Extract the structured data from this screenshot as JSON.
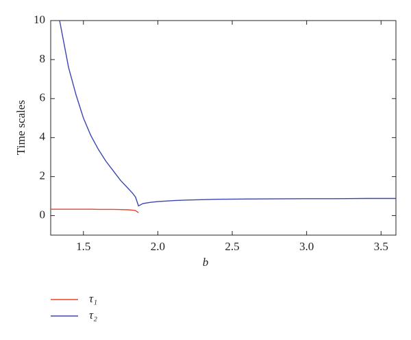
{
  "chart_data": {
    "type": "line",
    "xlabel": "b",
    "ylabel": "Time scales",
    "x": [
      1.28,
      1.3,
      1.34,
      1.35,
      1.4,
      1.45,
      1.5,
      1.55,
      1.6,
      1.65,
      1.7,
      1.75,
      1.8,
      1.83,
      1.85,
      1.87,
      1.9,
      1.95,
      2.0,
      2.1,
      2.2,
      2.4,
      2.6,
      2.8,
      3.0,
      3.2,
      3.4,
      3.6
    ],
    "series": [
      {
        "name": "τ₁",
        "color": "#e8412c",
        "values": [
          0.33,
          0.33,
          0.33,
          0.33,
          0.33,
          0.33,
          0.33,
          0.33,
          0.32,
          0.32,
          0.32,
          0.31,
          0.3,
          0.28,
          0.26,
          0.15,
          null,
          null,
          null,
          null,
          null,
          null,
          null,
          null,
          null,
          null,
          null,
          null
        ]
      },
      {
        "name": "τ₂",
        "color": "#3a45b0",
        "values": [
          null,
          null,
          10,
          9.6,
          7.6,
          6.2,
          5.0,
          4.1,
          3.4,
          2.8,
          2.3,
          1.8,
          1.4,
          1.15,
          0.95,
          0.5,
          0.62,
          0.68,
          0.72,
          0.77,
          0.8,
          0.84,
          0.85,
          0.86,
          0.87,
          0.87,
          0.88,
          0.88
        ]
      }
    ],
    "xlim": [
      1.28,
      3.6
    ],
    "ylim": [
      -1,
      10
    ],
    "xticks": [
      {
        "value": 1.5,
        "label": "1.5"
      },
      {
        "value": 2.0,
        "label": "2.0"
      },
      {
        "value": 2.5,
        "label": "2.5"
      },
      {
        "value": 3.0,
        "label": "3.0"
      },
      {
        "value": 3.5,
        "label": "3.5"
      }
    ],
    "yticks": [
      0,
      2,
      4,
      6,
      8,
      10
    ],
    "legend": "bottom-left"
  }
}
